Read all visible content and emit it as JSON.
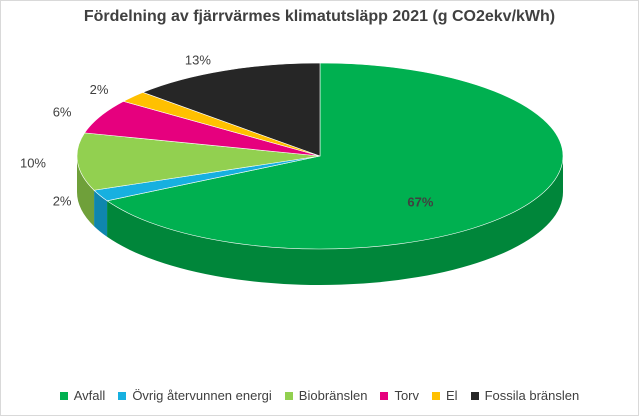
{
  "chart_data": {
    "type": "pie",
    "title": "Fördelning av fjärrvärmes klimatutsläpp 2021 (g CO2ekv/kWh)",
    "slices": [
      {
        "name": "Avfall",
        "value": 67,
        "label": "67%",
        "color": "#00b050",
        "dark": "#00863a"
      },
      {
        "name": "Övrig återvunnen energi",
        "value": 2,
        "label": "2%",
        "color": "#17b0e0",
        "dark": "#0f86ad"
      },
      {
        "name": "Biobränslen",
        "value": 10,
        "label": "10%",
        "color": "#92d050",
        "dark": "#6fa03a"
      },
      {
        "name": "Torv",
        "value": 6,
        "label": "6%",
        "color": "#e6007e",
        "dark": "#ad005f"
      },
      {
        "name": "El",
        "value": 2,
        "label": "2%",
        "color": "#ffc000",
        "dark": "#c29100"
      },
      {
        "name": "Fossila bränslen",
        "value": 13,
        "label": "13%",
        "color": "#262626",
        "dark": "#111111"
      }
    ],
    "legend_position": "bottom"
  }
}
